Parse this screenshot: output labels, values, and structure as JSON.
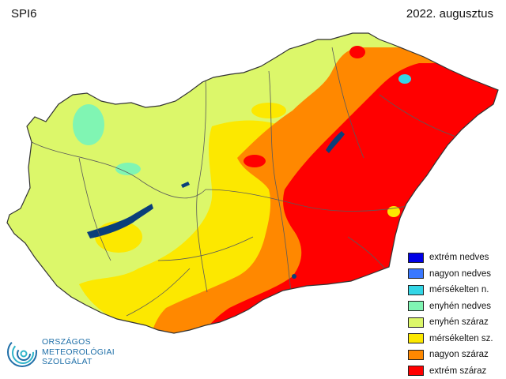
{
  "header": {
    "index_label": "SPI6",
    "period_label": "2022. augusztus"
  },
  "legend": {
    "items": [
      {
        "label": "extrém nedves",
        "color": "#0000e6"
      },
      {
        "label": "nagyon nedves",
        "color": "#3a78ff"
      },
      {
        "label": "mérsékelten n.",
        "color": "#33d6e6"
      },
      {
        "label": "enyhén nedves",
        "color": "#80f5b3"
      },
      {
        "label": "enyhén száraz",
        "color": "#dcf76a"
      },
      {
        "label": "mérsékelten sz.",
        "color": "#fce800"
      },
      {
        "label": "nagyon száraz",
        "color": "#ff8800"
      },
      {
        "label": "extrém száraz",
        "color": "#ff0000"
      }
    ]
  },
  "logo": {
    "line1": "ORSZÁGOS",
    "line2": "METEOROLÓGIAI",
    "line3": "SZOLGÁLAT",
    "color": "#1f6fa8"
  },
  "map_colors": {
    "lake": "#0a3f7a",
    "county_border": "#5a5a5a",
    "country_border": "#333333",
    "mild_dry": "#dcf76a",
    "moderate_dry": "#fce800",
    "very_dry": "#ff8800",
    "extreme_dry": "#ff0000",
    "mild_wet": "#80f5b3",
    "very_wet": "#3a78ff"
  }
}
